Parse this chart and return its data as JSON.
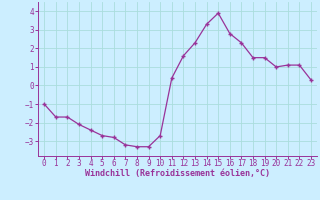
{
  "x": [
    0,
    1,
    2,
    3,
    4,
    5,
    6,
    7,
    8,
    9,
    10,
    11,
    12,
    13,
    14,
    15,
    16,
    17,
    18,
    19,
    20,
    21,
    22,
    23
  ],
  "y": [
    -1.0,
    -1.7,
    -1.7,
    -2.1,
    -2.4,
    -2.7,
    -2.8,
    -3.2,
    -3.3,
    -3.3,
    -2.7,
    0.4,
    1.6,
    2.3,
    3.3,
    3.9,
    2.8,
    2.3,
    1.5,
    1.5,
    1.0,
    1.1,
    1.1,
    0.3
  ],
  "line_color": "#993399",
  "marker": "+",
  "markersize": 3,
  "linewidth": 0.9,
  "markeredgewidth": 1.0,
  "background_color": "#cceeff",
  "grid_color": "#aadddd",
  "tick_color": "#993399",
  "label_color": "#993399",
  "xlabel": "Windchill (Refroidissement éolien,°C)",
  "ylim": [
    -3.8,
    4.5
  ],
  "xlim": [
    -0.5,
    23.5
  ],
  "yticks": [
    -3,
    -2,
    -1,
    0,
    1,
    2,
    3,
    4
  ],
  "xticks": [
    0,
    1,
    2,
    3,
    4,
    5,
    6,
    7,
    8,
    9,
    10,
    11,
    12,
    13,
    14,
    15,
    16,
    17,
    18,
    19,
    20,
    21,
    22,
    23
  ],
  "tick_fontsize": 5.5,
  "xlabel_fontsize": 6.0
}
